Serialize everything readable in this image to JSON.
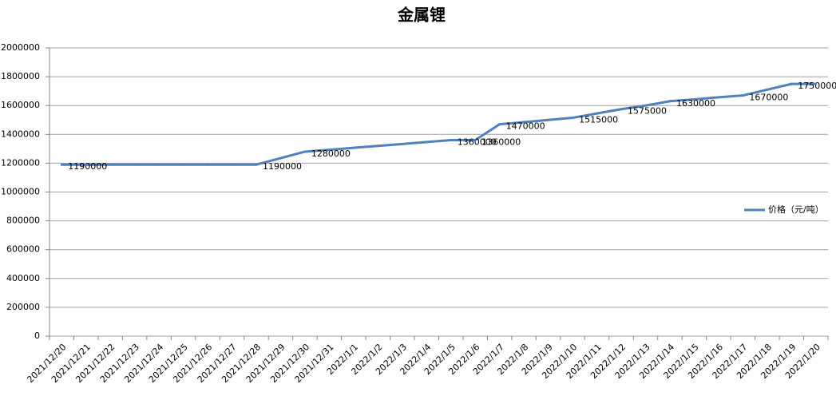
{
  "chart_data": {
    "type": "line",
    "title": "金属锂",
    "categories": [
      "2021/12/20",
      "2021/12/21",
      "2021/12/22",
      "2021/12/23",
      "2021/12/24",
      "2021/12/25",
      "2021/12/26",
      "2021/12/27",
      "2021/12/28",
      "2021/12/29",
      "2021/12/30",
      "2021/12/31",
      "2022/1/1",
      "2022/1/2",
      "2022/1/3",
      "2022/1/4",
      "2022/1/5",
      "2022/1/6",
      "2022/1/7",
      "2022/1/8",
      "2022/1/9",
      "2022/1/10",
      "2022/1/11",
      "2022/1/12",
      "2022/1/13",
      "2022/1/14",
      "2022/1/15",
      "2022/1/16",
      "2022/1/17",
      "2022/1/18",
      "2022/1/19",
      "2022/1/20"
    ],
    "series": [
      {
        "name": "价格（元/吨）",
        "color": "#4f81bd",
        "values": [
          1190000,
          1190000,
          1190000,
          1190000,
          1190000,
          1190000,
          1190000,
          1190000,
          1190000,
          1235000,
          1280000,
          1293000,
          1307000,
          1320000,
          1333000,
          1347000,
          1360000,
          1360000,
          1470000,
          1485000,
          1500000,
          1515000,
          1545000,
          1575000,
          1600000,
          1630000,
          1643000,
          1657000,
          1670000,
          1710000,
          1750000,
          1750000
        ],
        "value_labels": [
          "1190000",
          null,
          null,
          null,
          null,
          null,
          null,
          null,
          "1190000",
          null,
          "1280000",
          null,
          null,
          null,
          null,
          null,
          "1360000",
          "1360000",
          "1470000",
          null,
          null,
          "1515000",
          null,
          "1575000",
          null,
          "1630000",
          null,
          null,
          "1670000",
          null,
          "1750000",
          null
        ]
      }
    ],
    "ylim": [
      0,
      2000000
    ],
    "yticks": [
      0,
      200000,
      400000,
      600000,
      800000,
      1000000,
      1200000,
      1400000,
      1600000,
      1800000,
      2000000
    ],
    "grid": true,
    "legend": "right"
  }
}
